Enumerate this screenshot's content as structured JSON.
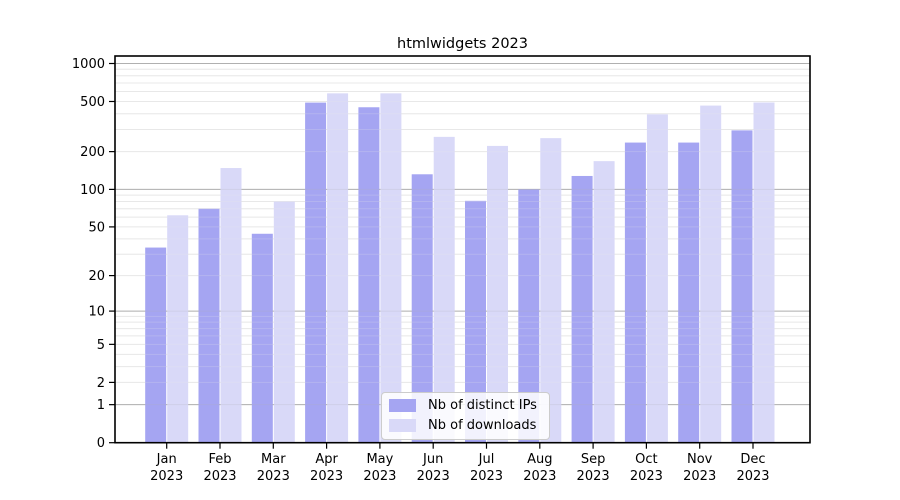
{
  "chart_data": {
    "type": "bar",
    "title": "htmlwidgets 2023",
    "yscale": "log1p",
    "ylim": [
      0,
      1100
    ],
    "yticks": [
      0,
      1,
      2,
      5,
      10,
      20,
      50,
      100,
      200,
      500,
      1000
    ],
    "x_categories": [
      "Jan",
      "Feb",
      "Mar",
      "Apr",
      "May",
      "Jun",
      "Jul",
      "Aug",
      "Sep",
      "Oct",
      "Nov",
      "Dec"
    ],
    "x_year": "2023",
    "series": [
      {
        "name": "Nb of distinct IPs",
        "color": "#a5a5f2",
        "values": [
          34,
          70,
          44,
          490,
          450,
          132,
          81,
          100,
          128,
          236,
          236,
          295
        ]
      },
      {
        "name": "Nb of downloads",
        "color": "#d9d9f8",
        "values": [
          62,
          148,
          80,
          580,
          580,
          262,
          222,
          256,
          168,
          395,
          464,
          491
        ]
      }
    ],
    "grid": {
      "minor_color": "#e8e8e8",
      "major_color": "#b0b0b0",
      "major_at": [
        1,
        10,
        100,
        1000
      ]
    },
    "legend_position": "lower center",
    "frame_color": "#000000",
    "text_color": "#000000"
  }
}
